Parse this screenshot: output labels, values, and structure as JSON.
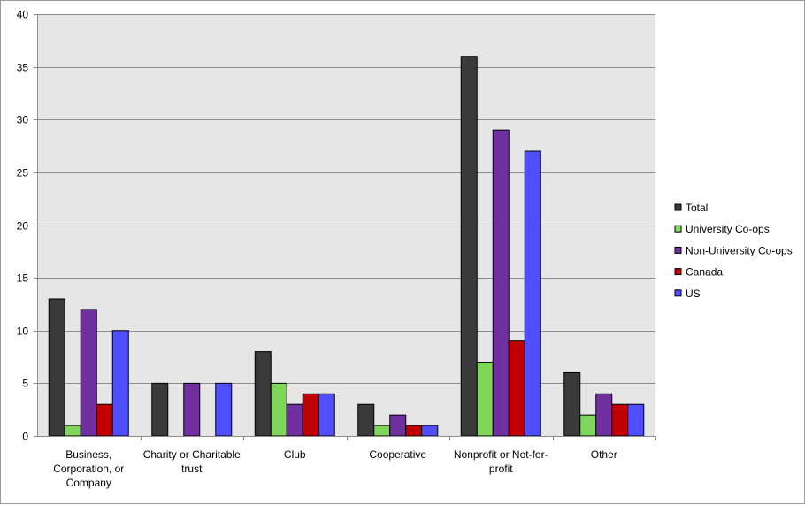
{
  "chart_data": {
    "type": "bar",
    "title": "",
    "xlabel": "",
    "ylabel": "",
    "ylim": [
      0,
      40
    ],
    "yticks": [
      0,
      5,
      10,
      15,
      20,
      25,
      30,
      35,
      40
    ],
    "grid": true,
    "legend_position": "right",
    "categories": [
      "Business, Corporation, or Company",
      "Charity or Charitable trust",
      "Club",
      "Cooperative",
      "Nonprofit or Not-for-profit",
      "Other"
    ],
    "series": [
      {
        "name": "Total",
        "color": "#3a3a3a",
        "values": [
          13,
          5,
          8,
          3,
          36,
          6
        ]
      },
      {
        "name": "University Co-ops",
        "color": "#7fd65a",
        "values": [
          1,
          0,
          5,
          1,
          7,
          2
        ]
      },
      {
        "name": "Non-University Co-ops",
        "color": "#7030a0",
        "values": [
          12,
          5,
          3,
          2,
          29,
          4
        ]
      },
      {
        "name": "Canada",
        "color": "#c00000",
        "values": [
          3,
          0,
          4,
          1,
          9,
          3
        ]
      },
      {
        "name": "US",
        "color": "#4f4fff",
        "values": [
          10,
          5,
          4,
          1,
          27,
          3
        ]
      }
    ],
    "plot_background": "#e6e6e6"
  }
}
